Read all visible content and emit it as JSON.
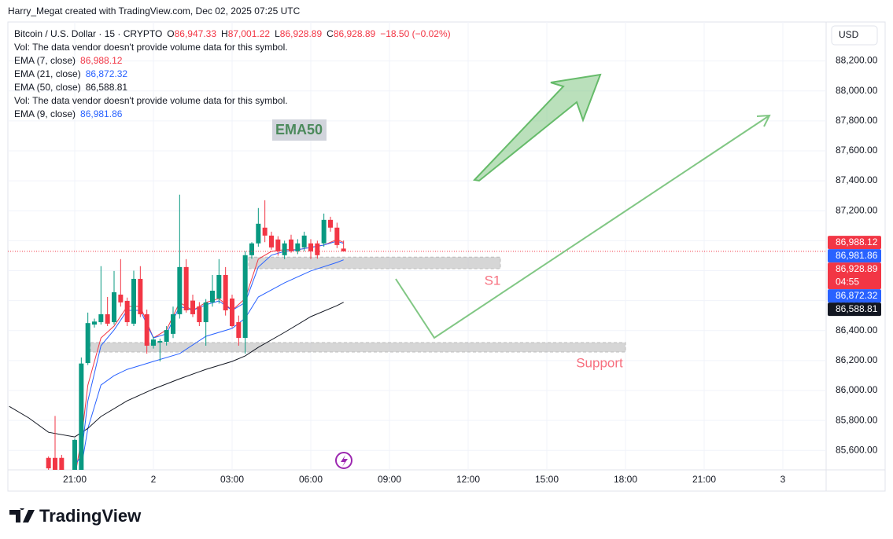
{
  "attribution": "Harry_Megat created with TradingView.com, Dec 02, 2025 07:25 UTC",
  "currency": "USD",
  "brand": "TradingView",
  "chart_data": {
    "type": "candlestick",
    "symbol": "Bitcoin / U.S. Dollar · 15 · CRYPTO",
    "ohlc_header": [
      {
        "key": "O",
        "value": "86,947.33"
      },
      {
        "key": "H",
        "value": "87,001.22"
      },
      {
        "key": "L",
        "value": "86,928.89"
      },
      {
        "key": "C",
        "value": "86,928.89"
      }
    ],
    "change": "−18.50 (−0.02%)",
    "volume_note": "Vol: The data vendor doesn't provide volume data for this symbol.",
    "up_color": "#089981",
    "down_color": "#f23645",
    "x": [
      20,
      20.25,
      20.5,
      21,
      21.25,
      21.5,
      21.75,
      22,
      22.25,
      22.5,
      22.75,
      23,
      23.25,
      23.5,
      23.75,
      24,
      24.25,
      24.5,
      24.75,
      25,
      25.25,
      25.5,
      25.75,
      26,
      26.25,
      26.5,
      26.75,
      27,
      27.25,
      27.5,
      27.75,
      28,
      28.25,
      28.5,
      28.75,
      29,
      29.25,
      29.5,
      29.75,
      30,
      30.25,
      30.5,
      30.75,
      31,
      31.25
    ],
    "open": [
      85550,
      85550,
      85550,
      85460,
      85470,
      86183,
      86440,
      86456,
      86509,
      86456,
      86640,
      86598,
      86446,
      86745,
      86509,
      86299,
      86320,
      86325,
      86378,
      86509,
      86824,
      86600,
      86561,
      86456,
      86588,
      86614,
      86771,
      86614,
      86456,
      86351,
      86903,
      86982,
      87087,
      87034,
      87008,
      86903,
      87008,
      86929,
      86955,
      86982,
      86982,
      86982,
      87139,
      87087,
      86947.33
    ],
    "high": [
      85560,
      85830,
      85570,
      85680,
      86220,
      86520,
      86480,
      86830,
      86624,
      86798,
      86877,
      86620,
      86800,
      86830,
      86540,
      86360,
      86346,
      86430,
      86560,
      87307,
      86877,
      86640,
      86590,
      86610,
      86771,
      86877,
      86824,
      86640,
      86500,
      86930,
      86990,
      87218,
      87270,
      87060,
      87030,
      87000,
      87040,
      87010,
      87060,
      87010,
      87000,
      87181,
      87160,
      87120,
      87001.22
    ],
    "low": [
      85440,
      85420,
      85430,
      85420,
      85450,
      86170,
      86420,
      86440,
      86430,
      86440,
      86560,
      86430,
      86430,
      86490,
      86246,
      86280,
      86194,
      86300,
      86350,
      86480,
      86520,
      86490,
      86430,
      86299,
      86560,
      86580,
      86500,
      86420,
      86299,
      86246,
      86880,
      86960,
      86990,
      86940,
      86900,
      86877,
      86920,
      86910,
      86930,
      86877,
      86880,
      86960,
      87060,
      86950,
      86928.89
    ],
    "close": [
      85480,
      85470,
      85460,
      85670,
      86180,
      86450,
      86460,
      86509,
      86446,
      86656,
      86588,
      86456,
      86745,
      86509,
      86299,
      86340,
      86330,
      86404,
      86509,
      86824,
      86535,
      86509,
      86456,
      86588,
      86666,
      86771,
      86535,
      86430,
      86351,
      86903,
      86982,
      87113,
      87034,
      86955,
      86929,
      86982,
      86929,
      86982,
      87034,
      86929,
      86903,
      87139,
      87087,
      86971,
      86928.89
    ],
    "last_label": "86,928.89",
    "countdown": "04:55",
    "indicators": [
      {
        "name": "EMA (7, close)",
        "color": "#f23645",
        "last_label": "86,988.12",
        "x": [
          21,
          21.25,
          21.5,
          22,
          22.5,
          23,
          23.5,
          24,
          24.5,
          25,
          25.5,
          26,
          26.5,
          27,
          27.5,
          28,
          28.5,
          29,
          29.5,
          30,
          30.5,
          31,
          31.25
        ],
        "values": [
          85420,
          85669,
          86036,
          86351,
          86430,
          86561,
          86561,
          86351,
          86404,
          86588,
          86535,
          86588,
          86614,
          86535,
          86614,
          86877,
          86929,
          86940,
          86940,
          86955,
          86971,
          87008,
          86988.12
        ]
      },
      {
        "name": "EMA (21, close)",
        "color": "#2962ff",
        "last_label": "86,872.32",
        "x": [
          21.25,
          21.5,
          22,
          22.5,
          23,
          23.5,
          24,
          25,
          26,
          27,
          27.5,
          28,
          29,
          30,
          31,
          31.25
        ],
        "values": [
          85485,
          85747,
          86036,
          86099,
          86141,
          86167,
          86194,
          86246,
          86362,
          86414,
          86483,
          86624,
          86719,
          86798,
          86855,
          86872.32
        ]
      },
      {
        "name": "EMA (50, close)",
        "color": "#131722",
        "last_label": "86,588.81",
        "x": [
          18.5,
          19.25,
          20,
          21,
          21.5,
          22,
          23,
          24,
          25,
          26,
          27,
          27.5,
          28,
          29,
          30,
          31,
          31.25
        ],
        "values": [
          85894,
          85816,
          85721,
          85690,
          85747,
          85826,
          85931,
          86010,
          86078,
          86141,
          86194,
          86231,
          86288,
          86388,
          86493,
          86567,
          86588.81
        ]
      },
      {
        "name": "EMA (9, close)",
        "color": "#2962ff",
        "last_label": "86,981.86",
        "x": [
          21,
          21.25,
          21.5,
          22,
          22.5,
          23,
          23.5,
          24,
          24.5,
          25,
          25.5,
          26,
          26.5,
          27,
          27.5,
          28,
          28.5,
          29,
          29.5,
          30,
          30.5,
          31,
          31.25
        ],
        "values": [
          85500,
          85564,
          85931,
          86299,
          86404,
          86535,
          86535,
          86351,
          86378,
          86561,
          86535,
          86572,
          86598,
          86535,
          86588,
          86824,
          86903,
          86929,
          86940,
          86955,
          86971,
          86997,
          86981.86
        ]
      }
    ],
    "zones": [
      {
        "label": "S1",
        "x": [
          27.63,
          37.23
        ],
        "y": [
          86813,
          86890
        ]
      },
      {
        "label": "Support",
        "x": [
          21.6,
          42.0
        ],
        "y": [
          86257,
          86320
        ]
      }
    ],
    "annotation": "EMA50",
    "xlim": [
      18.45,
      49.65
    ],
    "xticks": [
      {
        "value": 21,
        "label": "21:00"
      },
      {
        "value": 24,
        "label": "2"
      },
      {
        "value": 27,
        "label": "03:00"
      },
      {
        "value": 30,
        "label": "06:00"
      },
      {
        "value": 33,
        "label": "09:00"
      },
      {
        "value": 36,
        "label": "12:00"
      },
      {
        "value": 39,
        "label": "15:00"
      },
      {
        "value": 42,
        "label": "18:00"
      },
      {
        "value": 45,
        "label": "21:00"
      },
      {
        "value": 48,
        "label": "3"
      }
    ],
    "ylim": [
      85470,
      88460
    ],
    "yticks": [
      {
        "value": 85600,
        "label": "85,600.00"
      },
      {
        "value": 85800,
        "label": "85,800.00"
      },
      {
        "value": 86000,
        "label": "86,000.00"
      },
      {
        "value": 86200,
        "label": "86,200.00"
      },
      {
        "value": 86400,
        "label": "86,400.00"
      },
      {
        "value": 86600,
        "label": "86,600.00"
      },
      {
        "value": 86800,
        "label": "86,800.00"
      },
      {
        "value": 87000,
        "label": "87,000.00"
      },
      {
        "value": 87200,
        "label": "87,200.00"
      },
      {
        "value": 87400,
        "label": "87,400.00"
      },
      {
        "value": 87600,
        "label": "87,600.00"
      },
      {
        "value": 87800,
        "label": "87,800.00"
      },
      {
        "value": 88000,
        "label": "88,000.00"
      },
      {
        "value": 88200,
        "label": "88,200.00"
      }
    ],
    "grid": true
  }
}
